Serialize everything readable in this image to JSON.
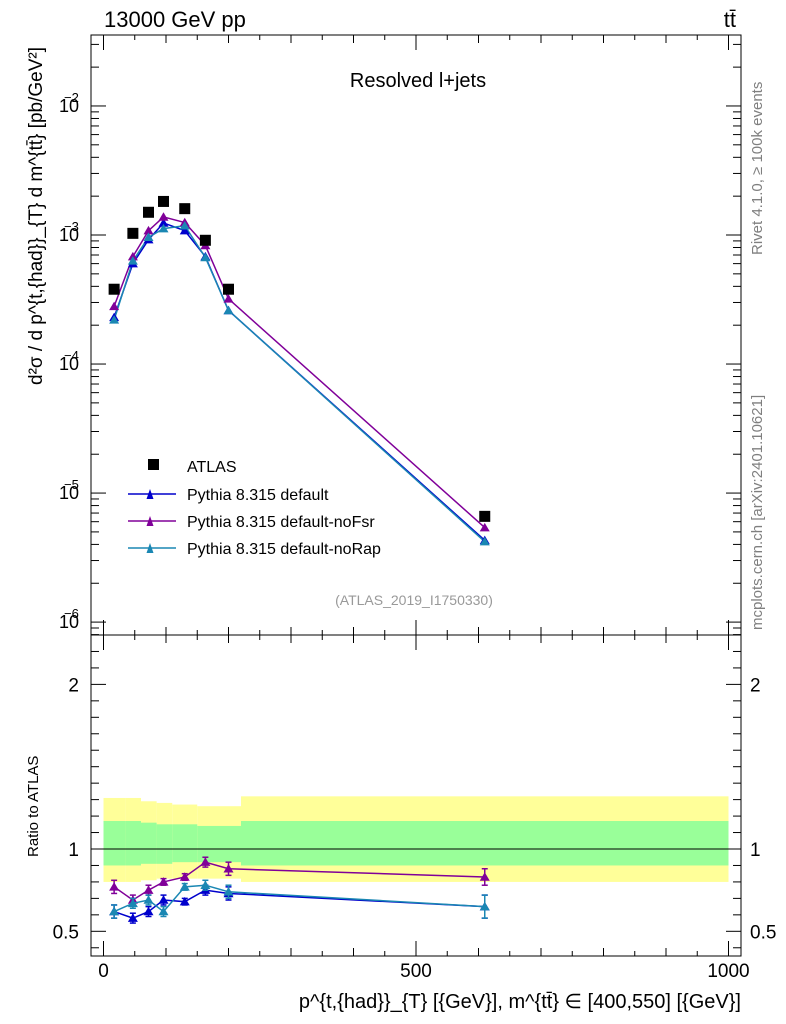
{
  "header": {
    "left": "13000 GeV pp",
    "right": "tt̄"
  },
  "side": {
    "top": "Rivet 4.1.0, ≥ 100k events",
    "bottom": "mcplots.cern.ch [arXiv:2401.10621]"
  },
  "chart_data": {
    "type": "scatter",
    "title": "Resolved l+jets",
    "analysis_tag": "(ATLAS_2019_I1750330)",
    "ylabel": "d²σ / d p^{t,{had}}_{T} d m^{tt̄} [pb/GeV²]",
    "ratio_ylabel": "Ratio to ATLAS",
    "xlabel": "p^{t,{had}}_{T} [{GeV}], m^{tt̄} ∈ [400,550] [{GeV}]",
    "xlim": [
      -20,
      1020
    ],
    "xticks": [
      0,
      500,
      1000
    ],
    "ylim_log": [
      -6.1,
      -1.45
    ],
    "yticks": [
      {
        "exp": -2,
        "label": "10",
        "sup": "−2"
      },
      {
        "exp": -3,
        "label": "10",
        "sup": "−3"
      },
      {
        "exp": -4,
        "label": "10",
        "sup": "−4"
      },
      {
        "exp": -5,
        "label": "10",
        "sup": "−5"
      },
      {
        "exp": -6,
        "label": "10",
        "sup": "−6"
      }
    ],
    "ratio_ylim": [
      0.35,
      2.3
    ],
    "ratio_yticks": [
      {
        "value": 0.5,
        "label": "0.5"
      },
      {
        "value": 1,
        "label": "1"
      },
      {
        "value": 2,
        "label": "2"
      }
    ],
    "x": [
      17,
      47,
      72,
      96,
      130,
      163,
      200,
      610
    ],
    "bins": [
      [
        0,
        35
      ],
      [
        35,
        60
      ],
      [
        60,
        85
      ],
      [
        85,
        110
      ],
      [
        110,
        150
      ],
      [
        150,
        180
      ],
      [
        180,
        220
      ],
      [
        220,
        1000
      ]
    ],
    "series": [
      {
        "name": "ATLAS",
        "color": "#000000",
        "marker": "square",
        "values": [
          0.00038,
          0.00103,
          0.0015,
          0.00182,
          0.0016,
          0.00091,
          0.00038,
          6.6e-06
        ]
      },
      {
        "name": "Pythia 8.315 default",
        "color": "#0000cc",
        "marker": "triangle",
        "values": [
          0.00023,
          0.0006,
          0.00092,
          0.00124,
          0.00108,
          0.00068,
          0.00026,
          4.3e-06
        ]
      },
      {
        "name": "Pythia 8.315 default-noFsr",
        "color": "#800099",
        "marker": "triangle",
        "values": [
          0.00028,
          0.00068,
          0.00108,
          0.00138,
          0.00125,
          0.00083,
          0.00032,
          5.4e-06
        ]
      },
      {
        "name": "Pythia 8.315 default-noRap",
        "color": "#1a87b3",
        "marker": "triangle",
        "values": [
          0.00022,
          0.00063,
          0.00096,
          0.00112,
          0.00118,
          0.00067,
          0.00026,
          4.2e-06
        ]
      }
    ],
    "ratios": [
      {
        "name": "Pythia 8.315 default",
        "values": [
          0.62,
          0.58,
          0.62,
          0.69,
          0.68,
          0.75,
          0.73,
          0.65
        ],
        "errors": [
          0.04,
          0.03,
          0.03,
          0.03,
          0.02,
          0.03,
          0.04,
          0.07
        ]
      },
      {
        "name": "Pythia 8.315 default-noFsr",
        "values": [
          0.77,
          0.69,
          0.75,
          0.8,
          0.83,
          0.92,
          0.88,
          0.83
        ],
        "errors": [
          0.04,
          0.03,
          0.03,
          0.02,
          0.02,
          0.03,
          0.04,
          0.05
        ]
      },
      {
        "name": "Pythia 8.315 default-noRap",
        "values": [
          0.62,
          0.67,
          0.69,
          0.62,
          0.77,
          0.78,
          0.74,
          0.65
        ],
        "errors": [
          0.04,
          0.03,
          0.03,
          0.03,
          0.02,
          0.03,
          0.04,
          0.07
        ]
      }
    ],
    "uncertainty_bands": {
      "yellow": {
        "color": "#ffff99",
        "lo": [
          0.8,
          0.8,
          0.81,
          0.82,
          0.82,
          0.82,
          0.82,
          0.8
        ],
        "hi": [
          1.31,
          1.31,
          1.29,
          1.28,
          1.27,
          1.26,
          1.26,
          1.32
        ]
      },
      "green": {
        "color": "#99ff99",
        "lo": [
          0.9,
          0.9,
          0.91,
          0.91,
          0.92,
          0.92,
          0.92,
          0.9
        ],
        "hi": [
          1.17,
          1.17,
          1.16,
          1.15,
          1.15,
          1.14,
          1.14,
          1.17
        ]
      }
    }
  }
}
